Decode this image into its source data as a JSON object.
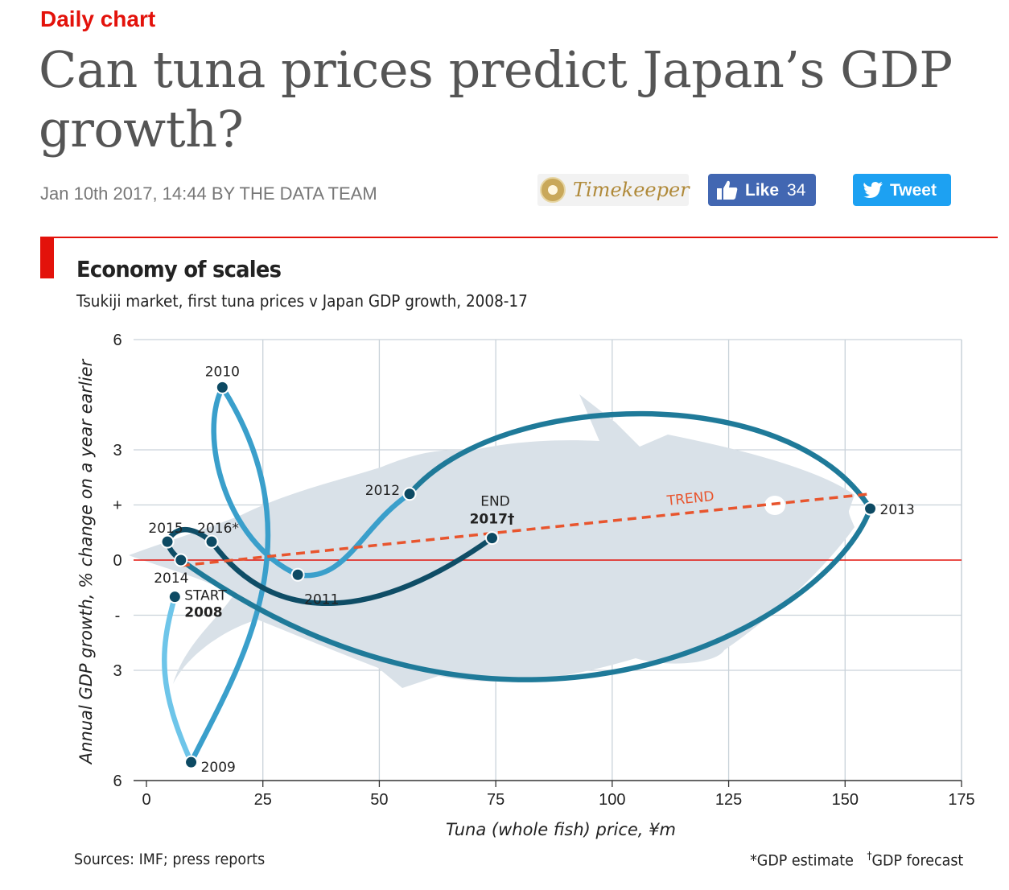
{
  "header": {
    "kicker": "Daily chart",
    "headline": "Can tuna prices predict Japan’s GDP growth?",
    "byline": "Jan 10th 2017, 14:44 BY THE DATA TEAM"
  },
  "share": {
    "timekeeper_label": "Timekeeper",
    "like_label": "Like",
    "like_count": "34",
    "tweet_label": "Tweet",
    "colors": {
      "like": "#4267b2",
      "tweet": "#1da1f2",
      "accent": "#e3120b"
    }
  },
  "chart": {
    "title": "Economy of scales",
    "subtitle": "Tsukiji market, first tuna prices v Japan GDP growth, 2008-17",
    "source": "Sources: IMF; press reports",
    "note_gdp_estimate": "*GDP estimate",
    "note_gdp_forecast_mark": "†",
    "note_gdp_forecast": "GDP forecast",
    "start_label": "START",
    "end_label": "END",
    "trend_label": "TREND"
  },
  "chart_data": {
    "type": "scatter",
    "title": "Economy of scales",
    "subtitle": "Tsukiji market, first tuna prices v Japan GDP growth, 2008-17",
    "xlabel": "Tuna (whole fish) price, ¥m",
    "ylabel": "Annual GDP growth, % change on a year earlier",
    "xlim": [
      0,
      175
    ],
    "ylim": [
      -6,
      6
    ],
    "x_ticks": [
      "0",
      "25",
      "50",
      "75",
      "100",
      "125",
      "150",
      "175"
    ],
    "y_ticks": [
      {
        "value": 6,
        "label": "6"
      },
      {
        "value": 3,
        "label": "3"
      },
      {
        "value": 1.5,
        "label": "+"
      },
      {
        "value": 0,
        "label": "0"
      },
      {
        "value": -1.5,
        "label": "-"
      },
      {
        "value": -3,
        "label": "3"
      },
      {
        "value": -6,
        "label": "6"
      }
    ],
    "points": [
      {
        "year": "2008",
        "x": 6.1,
        "y": -1.0
      },
      {
        "year": "2009",
        "x": 9.6,
        "y": -5.5
      },
      {
        "year": "2010",
        "x": 16.3,
        "y": 4.7
      },
      {
        "year": "2011",
        "x": 32.5,
        "y": -0.4
      },
      {
        "year": "2012",
        "x": 56.5,
        "y": 1.8
      },
      {
        "year": "2013",
        "x": 155.4,
        "y": 1.4
      },
      {
        "year": "2014",
        "x": 7.4,
        "y": 0.0
      },
      {
        "year": "2015",
        "x": 4.5,
        "y": 0.5
      },
      {
        "year": "2016*",
        "x": 14.0,
        "y": 0.5
      },
      {
        "year": "2017†",
        "x": 74.2,
        "y": 0.6
      }
    ],
    "trend": {
      "x": [
        7.4,
        155.4
      ],
      "y": [
        -0.15,
        1.8
      ]
    },
    "grid": true,
    "colors": {
      "line_light": "#6ec5e9",
      "line_mid": "#3a9fcb",
      "line_teal": "#1f7a99",
      "line_dark": "#0f4d66",
      "point": "#0d4a63",
      "trend": "#e8552e",
      "zero_line": "#e3120b",
      "grid": "#c9d2d9",
      "fish": "#d9e1e8"
    }
  }
}
